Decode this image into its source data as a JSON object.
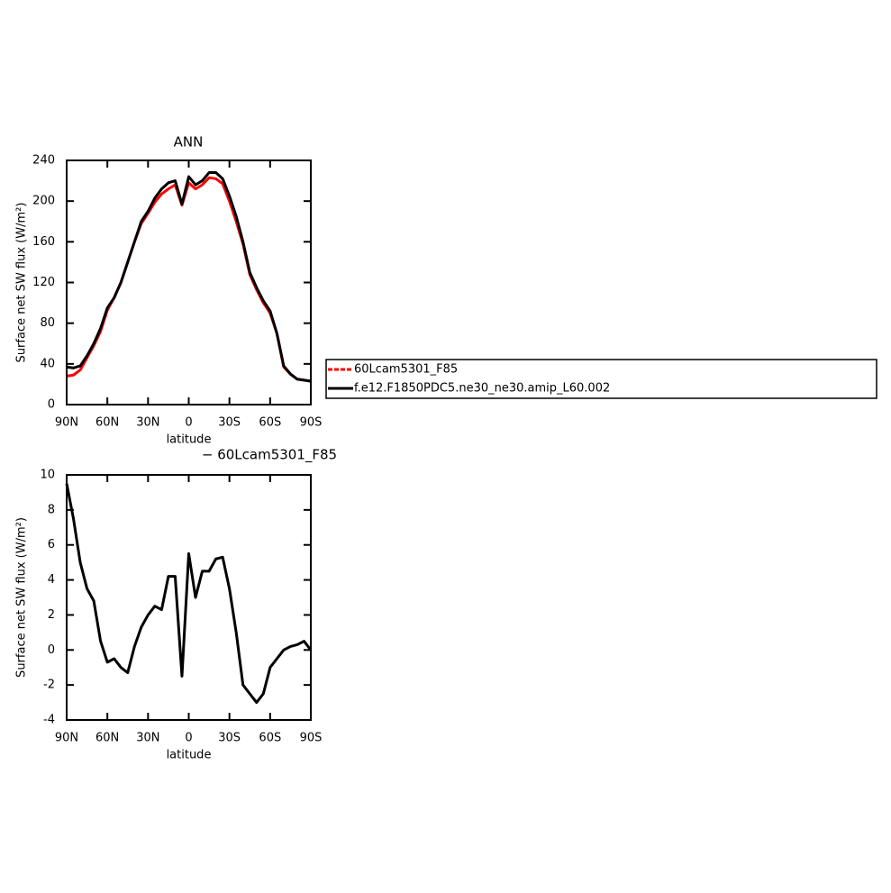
{
  "chart_data": [
    {
      "type": "line",
      "title": "ANN",
      "xlabel": "latitude",
      "ylabel": "Surface net SW flux (W/m²)",
      "x": [
        90,
        85,
        80,
        75,
        70,
        65,
        60,
        55,
        50,
        45,
        40,
        35,
        30,
        25,
        20,
        15,
        10,
        5,
        0,
        -5,
        -10,
        -15,
        -20,
        -25,
        -30,
        -35,
        -40,
        -45,
        -50,
        -55,
        -60,
        -65,
        -70,
        -75,
        -80,
        -85,
        -90
      ],
      "series": [
        {
          "name": "60Lcam5301_F85",
          "color": "#ff0000",
          "values": [
            28,
            29,
            34,
            46,
            58,
            72,
            93,
            105,
            120,
            140,
            160,
            178,
            188,
            199,
            207,
            212,
            216,
            196,
            218,
            212,
            216,
            223,
            222,
            217,
            200,
            180,
            158,
            128,
            113,
            100,
            90,
            70,
            37,
            30,
            25,
            24,
            23
          ]
        },
        {
          "name": "f.e12.F1850PDC5.ne30_ne30.amip_L60.002",
          "color": "#000000",
          "values": [
            37,
            36,
            38,
            48,
            60,
            75,
            95,
            105,
            120,
            140,
            160,
            180,
            190,
            203,
            212,
            218,
            220,
            197,
            224,
            216,
            220,
            228,
            228,
            222,
            205,
            185,
            160,
            130,
            115,
            102,
            92,
            70,
            38,
            30,
            25,
            24,
            23
          ]
        }
      ],
      "xlim": [
        90,
        -90
      ],
      "xticks": [
        {
          "value": 90,
          "label": "90N"
        },
        {
          "value": 60,
          "label": "60N"
        },
        {
          "value": 30,
          "label": "30N"
        },
        0,
        {
          "value": -30,
          "label": "30S"
        },
        {
          "value": -60,
          "label": "60S"
        },
        {
          "value": -90,
          "label": "90S"
        }
      ],
      "ylim": [
        0,
        240
      ],
      "yticks": [
        0,
        40,
        80,
        120,
        160,
        200,
        240
      ],
      "legend": "outside-right"
    },
    {
      "type": "line",
      "title": "− 60Lcam5301_F85",
      "xlabel": "latitude",
      "ylabel": "Surface net SW flux (W/m²)",
      "x": [
        90,
        85,
        80,
        75,
        70,
        65,
        60,
        55,
        50,
        45,
        40,
        35,
        30,
        25,
        20,
        15,
        10,
        5,
        0,
        -5,
        -10,
        -15,
        -20,
        -25,
        -30,
        -35,
        -40,
        -45,
        -50,
        -55,
        -60,
        -65,
        -70,
        -75,
        -80,
        -85,
        -90
      ],
      "series": [
        {
          "color": "#000000",
          "values": [
            9.5,
            7.5,
            5,
            3.5,
            2.8,
            0.5,
            -0.7,
            -0.5,
            -1,
            -1.3,
            0.2,
            1.3,
            2,
            2.5,
            2.3,
            4.2,
            4.2,
            -1.5,
            5.5,
            3,
            4.5,
            4.5,
            5.2,
            5.3,
            3.5,
            1,
            -2,
            -2.5,
            -3,
            -2.5,
            -1,
            -0.5,
            0,
            0.2,
            0.3,
            0.5,
            0
          ]
        }
      ],
      "xlim": [
        90,
        -90
      ],
      "xticks": [
        {
          "value": 90,
          "label": "90N"
        },
        {
          "value": 60,
          "label": "60N"
        },
        {
          "value": 30,
          "label": "30N"
        },
        0,
        {
          "value": -30,
          "label": "30S"
        },
        {
          "value": -60,
          "label": "60S"
        },
        {
          "value": -90,
          "label": "90S"
        }
      ],
      "ylim": [
        -4,
        10
      ],
      "yticks": [
        -4,
        -2,
        0,
        2,
        4,
        6,
        8,
        10
      ]
    }
  ]
}
